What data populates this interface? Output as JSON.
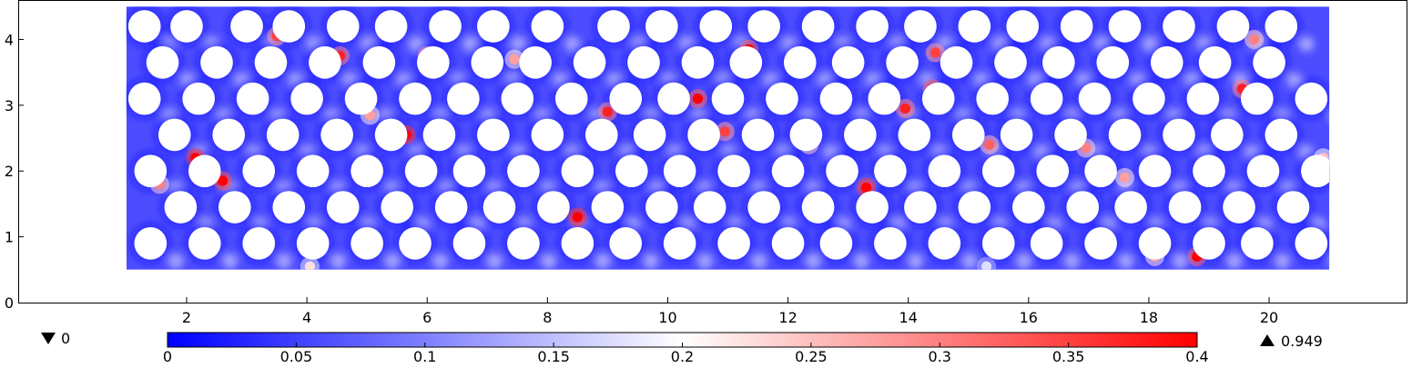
{
  "chart_data": {
    "type": "heatmap",
    "title": "",
    "xlabel": "",
    "ylabel": "",
    "xlim": [
      -0.8,
      22.3
    ],
    "ylim": [
      0,
      4.6
    ],
    "domain": {
      "x": [
        1,
        21
      ],
      "y": [
        0.5,
        4.5
      ]
    },
    "x_ticks": [
      "2",
      "4",
      "6",
      "8",
      "10",
      "12",
      "14",
      "16",
      "18",
      "20"
    ],
    "y_ticks": [
      "0",
      "1",
      "2",
      "3",
      "4"
    ],
    "grid": false,
    "colorbar": {
      "min": 0,
      "max": 0.4,
      "ticks": [
        "0",
        "0.05",
        "0.1",
        "0.15",
        "0.2",
        "0.25",
        "0.3",
        "0.35",
        "0.4"
      ],
      "colormap": [
        "#0000ff",
        "#ffffff",
        "#ff0000"
      ]
    },
    "min_label": "0",
    "max_label": "0.949",
    "obstacle_rows": [
      {
        "y": 4.2,
        "x": [
          1.3,
          2.0,
          3.0,
          3.7,
          4.6,
          5.4,
          6.3,
          7.1,
          8.0,
          9.1,
          9.9,
          10.8,
          11.6,
          12.5,
          13.4,
          14.2,
          15.1,
          15.9,
          16.8,
          17.6,
          18.5,
          19.4,
          20.2
        ]
      },
      {
        "y": 3.65,
        "x": [
          1.6,
          2.5,
          3.4,
          4.3,
          5.2,
          6.1,
          7.0,
          7.8,
          8.7,
          9.6,
          10.5,
          11.3,
          12.2,
          13.0,
          13.9,
          14.8,
          15.7,
          16.5,
          17.4,
          18.3,
          19.1,
          20.0
        ]
      },
      {
        "y": 3.1,
        "x": [
          1.3,
          2.2,
          3.1,
          4.0,
          4.9,
          5.8,
          6.6,
          7.5,
          8.4,
          9.3,
          10.1,
          11.0,
          11.9,
          12.8,
          13.6,
          14.5,
          15.4,
          16.3,
          17.1,
          18.0,
          18.9,
          19.8,
          20.7
        ]
      },
      {
        "y": 2.55,
        "x": [
          1.8,
          2.7,
          3.6,
          4.5,
          5.4,
          6.2,
          7.1,
          8.0,
          8.9,
          9.7,
          10.6,
          11.5,
          12.3,
          13.2,
          14.1,
          15.0,
          15.8,
          16.7,
          17.6,
          18.5,
          19.3,
          20.2
        ]
      },
      {
        "y": 2.0,
        "x": [
          1.4,
          2.3,
          3.2,
          4.1,
          5.0,
          5.9,
          6.7,
          7.6,
          8.5,
          9.4,
          10.2,
          11.1,
          12.0,
          12.9,
          13.7,
          14.6,
          15.5,
          16.4,
          17.2,
          18.1,
          19.0,
          19.9,
          20.8
        ]
      },
      {
        "y": 1.45,
        "x": [
          1.9,
          2.8,
          3.7,
          4.6,
          5.5,
          6.4,
          7.2,
          8.1,
          9.0,
          9.9,
          10.7,
          11.6,
          12.5,
          13.4,
          14.2,
          15.1,
          16.0,
          16.9,
          17.7,
          18.6,
          19.5,
          20.4
        ]
      },
      {
        "y": 0.9,
        "x": [
          1.4,
          2.3,
          3.2,
          4.1,
          5.0,
          5.8,
          6.7,
          7.6,
          8.5,
          9.3,
          10.2,
          11.1,
          12.0,
          12.8,
          13.7,
          14.6,
          15.5,
          16.3,
          17.2,
          18.1,
          19.0,
          19.8,
          20.7
        ]
      }
    ],
    "obstacle_radius": 0.27,
    "hotspots": [
      {
        "x": 2.15,
        "y": 2.2,
        "v": 0.9
      },
      {
        "x": 2.6,
        "y": 1.85,
        "v": 0.85
      },
      {
        "x": 1.55,
        "y": 1.8,
        "v": 0.6
      },
      {
        "x": 3.5,
        "y": 4.05,
        "v": 0.7
      },
      {
        "x": 4.55,
        "y": 3.75,
        "v": 0.75
      },
      {
        "x": 5.05,
        "y": 2.85,
        "v": 0.55
      },
      {
        "x": 5.65,
        "y": 2.55,
        "v": 0.9
      },
      {
        "x": 6.0,
        "y": 3.75,
        "v": 0.7
      },
      {
        "x": 7.45,
        "y": 3.7,
        "v": 0.55
      },
      {
        "x": 8.5,
        "y": 1.3,
        "v": 0.9
      },
      {
        "x": 9.0,
        "y": 2.9,
        "v": 0.75
      },
      {
        "x": 10.5,
        "y": 3.1,
        "v": 0.8
      },
      {
        "x": 10.95,
        "y": 2.6,
        "v": 0.7
      },
      {
        "x": 11.35,
        "y": 3.85,
        "v": 0.8
      },
      {
        "x": 12.35,
        "y": 2.4,
        "v": 0.6
      },
      {
        "x": 13.3,
        "y": 1.75,
        "v": 0.9
      },
      {
        "x": 13.95,
        "y": 2.95,
        "v": 0.75
      },
      {
        "x": 14.4,
        "y": 3.25,
        "v": 0.8
      },
      {
        "x": 14.45,
        "y": 3.8,
        "v": 0.7
      },
      {
        "x": 15.35,
        "y": 2.4,
        "v": 0.65
      },
      {
        "x": 16.95,
        "y": 2.35,
        "v": 0.6
      },
      {
        "x": 17.6,
        "y": 1.9,
        "v": 0.55
      },
      {
        "x": 18.1,
        "y": 0.7,
        "v": 0.55
      },
      {
        "x": 18.8,
        "y": 0.7,
        "v": 0.8
      },
      {
        "x": 19.55,
        "y": 3.25,
        "v": 0.75
      },
      {
        "x": 19.75,
        "y": 4.0,
        "v": 0.6
      },
      {
        "x": 20.9,
        "y": 2.2,
        "v": 0.5
      },
      {
        "x": 4.05,
        "y": 0.55,
        "v": 0.45
      },
      {
        "x": 15.3,
        "y": 0.55,
        "v": 0.35
      }
    ]
  }
}
